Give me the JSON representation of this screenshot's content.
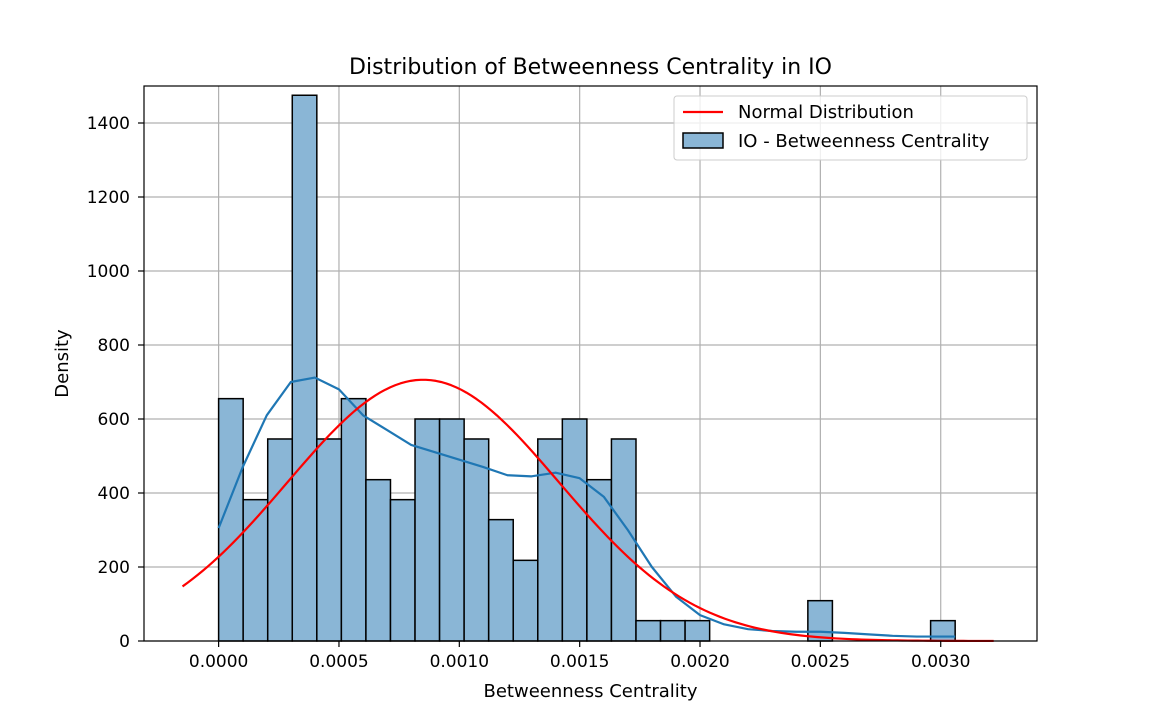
{
  "chart_data": {
    "type": "bar",
    "title": "Distribution of Betweenness Centrality in IO",
    "xlabel": "Betweenness Centrality",
    "ylabel": "Density",
    "xlim": [
      -0.00031,
      0.0034
    ],
    "ylim": [
      0,
      1500
    ],
    "xticks": [
      0.0,
      0.0005,
      0.001,
      0.0015,
      0.002,
      0.0025,
      0.003
    ],
    "xtick_labels": [
      "0.0000",
      "0.0005",
      "0.0010",
      "0.0015",
      "0.0020",
      "0.0025",
      "0.0030"
    ],
    "yticks": [
      0,
      200,
      400,
      600,
      800,
      1000,
      1200,
      1400
    ],
    "ytick_labels": [
      "0",
      "200",
      "400",
      "600",
      "800",
      "1000",
      "1200",
      "1400"
    ],
    "grid": true,
    "legend_position": "top-right",
    "histogram": {
      "name": "IO - Betweenness Centrality",
      "color": "#8ab6d6",
      "edge_color": "#000000",
      "bin_start": 0.0,
      "bin_width": 0.000102,
      "values": [
        655,
        382,
        546,
        1475,
        546,
        655,
        436,
        382,
        600,
        600,
        546,
        328,
        218,
        546,
        600,
        436,
        546,
        55,
        55,
        55,
        0,
        0,
        0,
        0,
        109,
        0,
        0,
        0,
        0,
        55
      ]
    },
    "kde": {
      "color": "#1f77b4",
      "x": [
        0.0,
        0.0001,
        0.0002,
        0.0003,
        0.0004,
        0.0005,
        0.0006,
        0.0007,
        0.0008,
        0.0009,
        0.001,
        0.0011,
        0.0012,
        0.0013,
        0.0014,
        0.0015,
        0.0016,
        0.0017,
        0.0018,
        0.0019,
        0.002,
        0.0021,
        0.0022,
        0.0023,
        0.0024,
        0.0025,
        0.0026,
        0.0027,
        0.0028,
        0.0029,
        0.003,
        0.00306
      ],
      "y": [
        305,
        470,
        610,
        700,
        712,
        680,
        610,
        570,
        530,
        510,
        490,
        470,
        448,
        445,
        455,
        440,
        390,
        300,
        200,
        120,
        70,
        45,
        32,
        27,
        25,
        25,
        22,
        18,
        14,
        12,
        12,
        12
      ]
    },
    "normal": {
      "name": "Normal Distribution",
      "color": "#ff0000",
      "mean": 0.00085,
      "std": 0.000565,
      "x_range": [
        -0.00015,
        0.00322
      ]
    }
  }
}
